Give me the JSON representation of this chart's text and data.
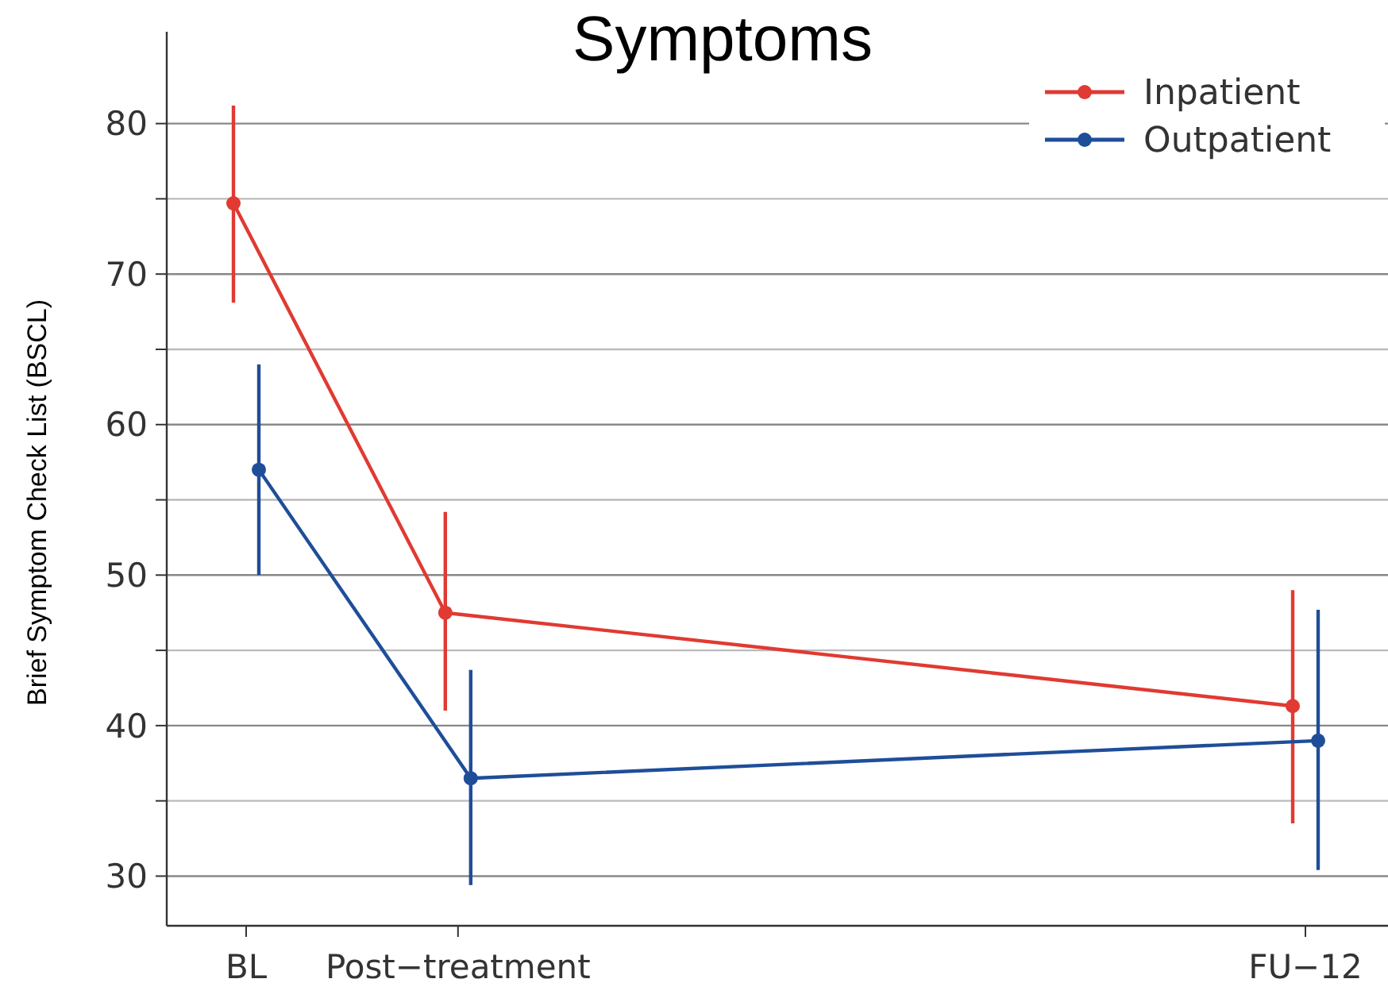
{
  "chart_data": {
    "type": "line",
    "title": "Symptoms",
    "ylabel": "Brief Symptom Check List (BSCL)",
    "categories": [
      "BL",
      "Post−treatment",
      null,
      null,
      null,
      "FU−12"
    ],
    "ylim": [
      26.7,
      86.1
    ],
    "yticks": [
      30,
      {
        "value": 35,
        "label": null
      },
      40,
      {
        "value": 45,
        "label": null
      },
      50,
      {
        "value": 55,
        "label": null
      },
      60,
      {
        "value": 65,
        "label": null
      },
      70,
      {
        "value": 75,
        "label": null
      },
      80
    ],
    "grid": "y",
    "legend": "top right",
    "marker": "circle",
    "line_style": "solid",
    "series": [
      {
        "name": "Inpatient",
        "color": "#e03a32",
        "values": [
          74.7,
          47.5,
          null,
          null,
          null,
          41.3
        ],
        "errors": [
          [
            68.1,
            81.2
          ],
          [
            41,
            54.2
          ],
          null,
          null,
          null,
          [
            33.5,
            49
          ]
        ]
      },
      {
        "name": "Outpatient",
        "color": "#1f4e99",
        "values": [
          57,
          36.5,
          null,
          null,
          null,
          39
        ],
        "errors": [
          [
            50,
            64
          ],
          [
            29.4,
            43.7
          ],
          null,
          null,
          null,
          [
            30.4,
            47.7
          ]
        ]
      }
    ]
  }
}
